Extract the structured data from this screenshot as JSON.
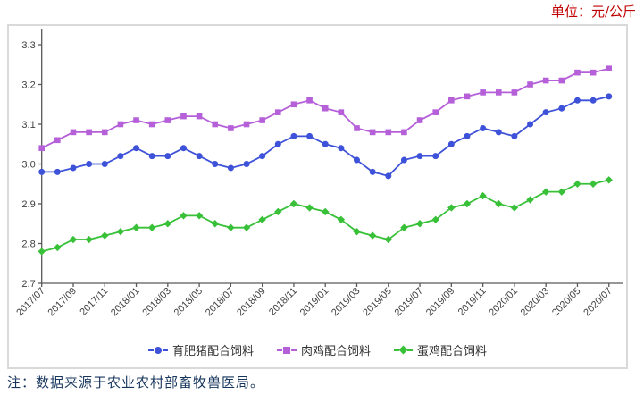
{
  "unit_label": "单位：元/公斤",
  "note": "注：数据来源于农业农村部畜牧兽医局。",
  "colors": {
    "pig_blue": "#3e52d9",
    "broiler_purple": "#b55fd9",
    "layer_green": "#38c138",
    "axis": "#595959",
    "tick_text": "#404040",
    "box_border": "#d9d9d9",
    "unit_red": "#c00000",
    "note_navy": "#17365d"
  },
  "chart_data": {
    "type": "line",
    "title": "",
    "xlabel": "",
    "ylabel": "",
    "grid": false,
    "legend_position": "bottom",
    "ylim": [
      2.7,
      3.3
    ],
    "y_ticks": [
      "3.3",
      "3.2",
      "3.1",
      "3.0",
      "2.9",
      "2.8",
      "2.7"
    ],
    "x_tick_step": 2,
    "x": [
      "2017/07",
      "2017/08",
      "2017/09",
      "2017/10",
      "2017/11",
      "2017/12",
      "2018/01",
      "2018/02",
      "2018/03",
      "2018/04",
      "2018/05",
      "2018/06",
      "2018/07",
      "2018/08",
      "2018/09",
      "2018/10",
      "2018/11",
      "2018/12",
      "2019/01",
      "2019/02",
      "2019/03",
      "2019/04",
      "2019/05",
      "2019/06",
      "2019/07",
      "2019/08",
      "2019/09",
      "2019/10",
      "2019/11",
      "2019/12",
      "2020/01",
      "2020/02",
      "2020/03",
      "2020/04",
      "2020/05",
      "2020/06",
      "2020/07"
    ],
    "series": [
      {
        "key": "fattening-pig-feed",
        "name": "育肥猪配合饲料",
        "marker": "circle",
        "color": "#3e52d9",
        "values": [
          2.98,
          2.98,
          2.99,
          3.0,
          3.0,
          3.02,
          3.04,
          3.02,
          3.02,
          3.04,
          3.02,
          3.0,
          2.99,
          3.0,
          3.02,
          3.05,
          3.07,
          3.07,
          3.05,
          3.04,
          3.01,
          2.98,
          2.97,
          3.01,
          3.02,
          3.02,
          3.05,
          3.07,
          3.09,
          3.08,
          3.07,
          3.1,
          3.13,
          3.14,
          3.16,
          3.16,
          3.17
        ]
      },
      {
        "key": "broiler-feed",
        "name": "肉鸡配合饲料",
        "marker": "square",
        "color": "#b55fd9",
        "values": [
          3.04,
          3.06,
          3.08,
          3.08,
          3.08,
          3.1,
          3.11,
          3.1,
          3.11,
          3.12,
          3.12,
          3.1,
          3.09,
          3.1,
          3.11,
          3.13,
          3.15,
          3.16,
          3.14,
          3.13,
          3.09,
          3.08,
          3.08,
          3.08,
          3.11,
          3.13,
          3.16,
          3.17,
          3.18,
          3.18,
          3.18,
          3.2,
          3.21,
          3.21,
          3.23,
          3.23,
          3.24
        ]
      },
      {
        "key": "layer-feed",
        "name": "蛋鸡配合饲料",
        "marker": "diamond",
        "color": "#38c138",
        "values": [
          2.78,
          2.79,
          2.81,
          2.81,
          2.82,
          2.83,
          2.84,
          2.84,
          2.85,
          2.87,
          2.87,
          2.85,
          2.84,
          2.84,
          2.86,
          2.88,
          2.9,
          2.89,
          2.88,
          2.86,
          2.83,
          2.82,
          2.81,
          2.84,
          2.85,
          2.86,
          2.89,
          2.9,
          2.92,
          2.9,
          2.89,
          2.91,
          2.93,
          2.93,
          2.95,
          2.95,
          2.96
        ]
      }
    ]
  }
}
